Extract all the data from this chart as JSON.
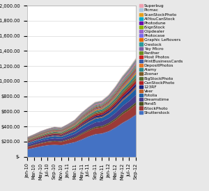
{
  "x_labels": [
    "Jan-10",
    "Mar-10",
    "May-10",
    "Jul-10",
    "Sep-10",
    "Nov-10",
    "Jan-11",
    "Mar-11",
    "May-11",
    "Jul-11",
    "Sep-11",
    "Nov-11",
    "Jan-12",
    "Mar-12",
    "May-12",
    "Jul-12",
    "Sep-12"
  ],
  "series": [
    {
      "name": "Shutterstock",
      "color": "#4472C4",
      "values": [
        100,
        120,
        140,
        155,
        160,
        155,
        175,
        195,
        230,
        270,
        300,
        310,
        340,
        390,
        450,
        500,
        560
      ]
    },
    {
      "name": "iStockPhoto",
      "color": "#9B3A37",
      "values": [
        30,
        35,
        38,
        42,
        45,
        44,
        50,
        58,
        70,
        75,
        80,
        82,
        90,
        100,
        115,
        125,
        135
      ]
    },
    {
      "name": "Pond5",
      "color": "#4B5320",
      "values": [
        5,
        6,
        7,
        8,
        8,
        8,
        10,
        12,
        14,
        16,
        18,
        18,
        20,
        22,
        25,
        28,
        30
      ]
    },
    {
      "name": "Dreamstime",
      "color": "#483D8B",
      "values": [
        25,
        28,
        30,
        32,
        35,
        34,
        38,
        42,
        50,
        55,
        60,
        62,
        68,
        75,
        85,
        90,
        100
      ]
    },
    {
      "name": "Fotolia",
      "color": "#1F5FA6",
      "values": [
        20,
        22,
        24,
        26,
        28,
        27,
        30,
        34,
        40,
        44,
        48,
        50,
        55,
        62,
        70,
        78,
        85
      ]
    },
    {
      "name": "Veer",
      "color": "#C0622A",
      "values": [
        5,
        6,
        6,
        7,
        7,
        7,
        8,
        9,
        10,
        11,
        12,
        12,
        14,
        16,
        18,
        20,
        22
      ]
    },
    {
      "name": "123RF",
      "color": "#1A237E",
      "values": [
        8,
        9,
        10,
        11,
        12,
        12,
        14,
        16,
        19,
        21,
        23,
        24,
        26,
        30,
        34,
        38,
        42
      ]
    },
    {
      "name": "CanStockPhoto",
      "color": "#B22222",
      "values": [
        10,
        11,
        12,
        14,
        15,
        14,
        16,
        18,
        22,
        24,
        26,
        27,
        30,
        34,
        38,
        42,
        46
      ]
    },
    {
      "name": "BigStockPhoto",
      "color": "#556B2F",
      "values": [
        5,
        5,
        6,
        7,
        7,
        7,
        8,
        9,
        11,
        12,
        13,
        14,
        15,
        17,
        19,
        21,
        23
      ]
    },
    {
      "name": "Zoonar",
      "color": "#7B5B2A",
      "values": [
        3,
        3,
        4,
        4,
        5,
        5,
        5,
        6,
        7,
        8,
        9,
        9,
        10,
        11,
        13,
        14,
        16
      ]
    },
    {
      "name": "Alamy",
      "color": "#2E8B8B",
      "values": [
        8,
        9,
        10,
        11,
        12,
        12,
        14,
        16,
        19,
        21,
        23,
        24,
        26,
        30,
        34,
        38,
        42
      ]
    },
    {
      "name": "DepositPhotos",
      "color": "#E87722",
      "values": [
        6,
        7,
        7,
        8,
        9,
        9,
        10,
        11,
        14,
        15,
        17,
        17,
        19,
        22,
        25,
        27,
        30
      ]
    },
    {
      "name": "PrintBusinessCards",
      "color": "#3A5DA8",
      "values": [
        4,
        4,
        5,
        5,
        6,
        6,
        6,
        7,
        9,
        10,
        11,
        11,
        12,
        14,
        16,
        17,
        19
      ]
    },
    {
      "name": "Most Photos",
      "color": "#CC2222",
      "values": [
        4,
        4,
        5,
        5,
        6,
        6,
        6,
        7,
        8,
        9,
        10,
        10,
        11,
        13,
        15,
        16,
        18
      ]
    },
    {
      "name": "Panther",
      "color": "#6B8E23",
      "values": [
        4,
        4,
        5,
        5,
        6,
        6,
        6,
        7,
        8,
        9,
        10,
        10,
        11,
        13,
        15,
        16,
        18
      ]
    },
    {
      "name": "Yay Micro",
      "color": "#7B5EA7",
      "values": [
        3,
        3,
        4,
        4,
        5,
        5,
        5,
        6,
        7,
        8,
        9,
        9,
        10,
        11,
        13,
        14,
        16
      ]
    },
    {
      "name": "Crestock",
      "color": "#2E9B9B",
      "values": [
        4,
        4,
        5,
        5,
        6,
        6,
        6,
        7,
        8,
        9,
        10,
        10,
        11,
        13,
        15,
        16,
        18
      ]
    },
    {
      "name": "Graphic Leftovers",
      "color": "#E86A00",
      "values": [
        3,
        4,
        4,
        4,
        5,
        5,
        5,
        6,
        7,
        8,
        9,
        9,
        10,
        12,
        13,
        15,
        17
      ]
    },
    {
      "name": "Photocase",
      "color": "#7B68EE",
      "values": [
        2,
        2,
        3,
        3,
        3,
        3,
        4,
        4,
        5,
        6,
        6,
        7,
        7,
        8,
        9,
        10,
        11
      ]
    },
    {
      "name": "Clipdealer",
      "color": "#9966CC",
      "values": [
        2,
        2,
        3,
        3,
        3,
        3,
        4,
        4,
        5,
        5,
        6,
        6,
        7,
        8,
        9,
        10,
        11
      ]
    },
    {
      "name": "iSignStock",
      "color": "#8DB600",
      "values": [
        2,
        2,
        3,
        3,
        3,
        3,
        3,
        4,
        5,
        5,
        6,
        6,
        7,
        8,
        9,
        10,
        11
      ]
    },
    {
      "name": "Photodune",
      "color": "#6A0DAD",
      "values": [
        1,
        2,
        2,
        2,
        2,
        2,
        3,
        3,
        4,
        4,
        5,
        5,
        5,
        6,
        7,
        8,
        9
      ]
    },
    {
      "name": "AllYouCanStock",
      "color": "#00AACC",
      "values": [
        1,
        1,
        2,
        2,
        2,
        2,
        2,
        3,
        3,
        4,
        4,
        4,
        5,
        6,
        6,
        7,
        8
      ]
    },
    {
      "name": "ScanStockPhoto",
      "color": "#E8A020",
      "values": [
        1,
        1,
        1,
        2,
        2,
        2,
        2,
        2,
        3,
        3,
        4,
        4,
        4,
        5,
        6,
        6,
        7
      ]
    },
    {
      "name": "Picmac",
      "color": "#A8C8E0",
      "values": [
        1,
        1,
        1,
        1,
        2,
        2,
        2,
        2,
        3,
        3,
        3,
        3,
        4,
        4,
        5,
        5,
        6
      ]
    },
    {
      "name": "Superbug",
      "color": "#F0A0B0",
      "values": [
        1,
        1,
        1,
        1,
        1,
        1,
        2,
        2,
        2,
        3,
        3,
        3,
        3,
        4,
        4,
        5,
        5
      ]
    }
  ],
  "ylim": [
    0,
    2000
  ],
  "yticks": [
    0,
    200,
    400,
    600,
    800,
    1000,
    1200,
    1400,
    1600,
    1800,
    2000
  ],
  "ytick_labels": [
    "$-",
    "$200.00",
    "$400.00",
    "$600.00",
    "$800.00",
    "$1,000.00",
    "$1,200.00",
    "$1,400.00",
    "$1,600.00",
    "$1,800.00",
    "$2,000.00"
  ],
  "bg_color": "#E8E8E8",
  "plot_bg_color": "#FFFFFF",
  "grid_color": "#D0D0D0",
  "legend_fontsize": 4.2,
  "tick_fontsize": 4.8
}
